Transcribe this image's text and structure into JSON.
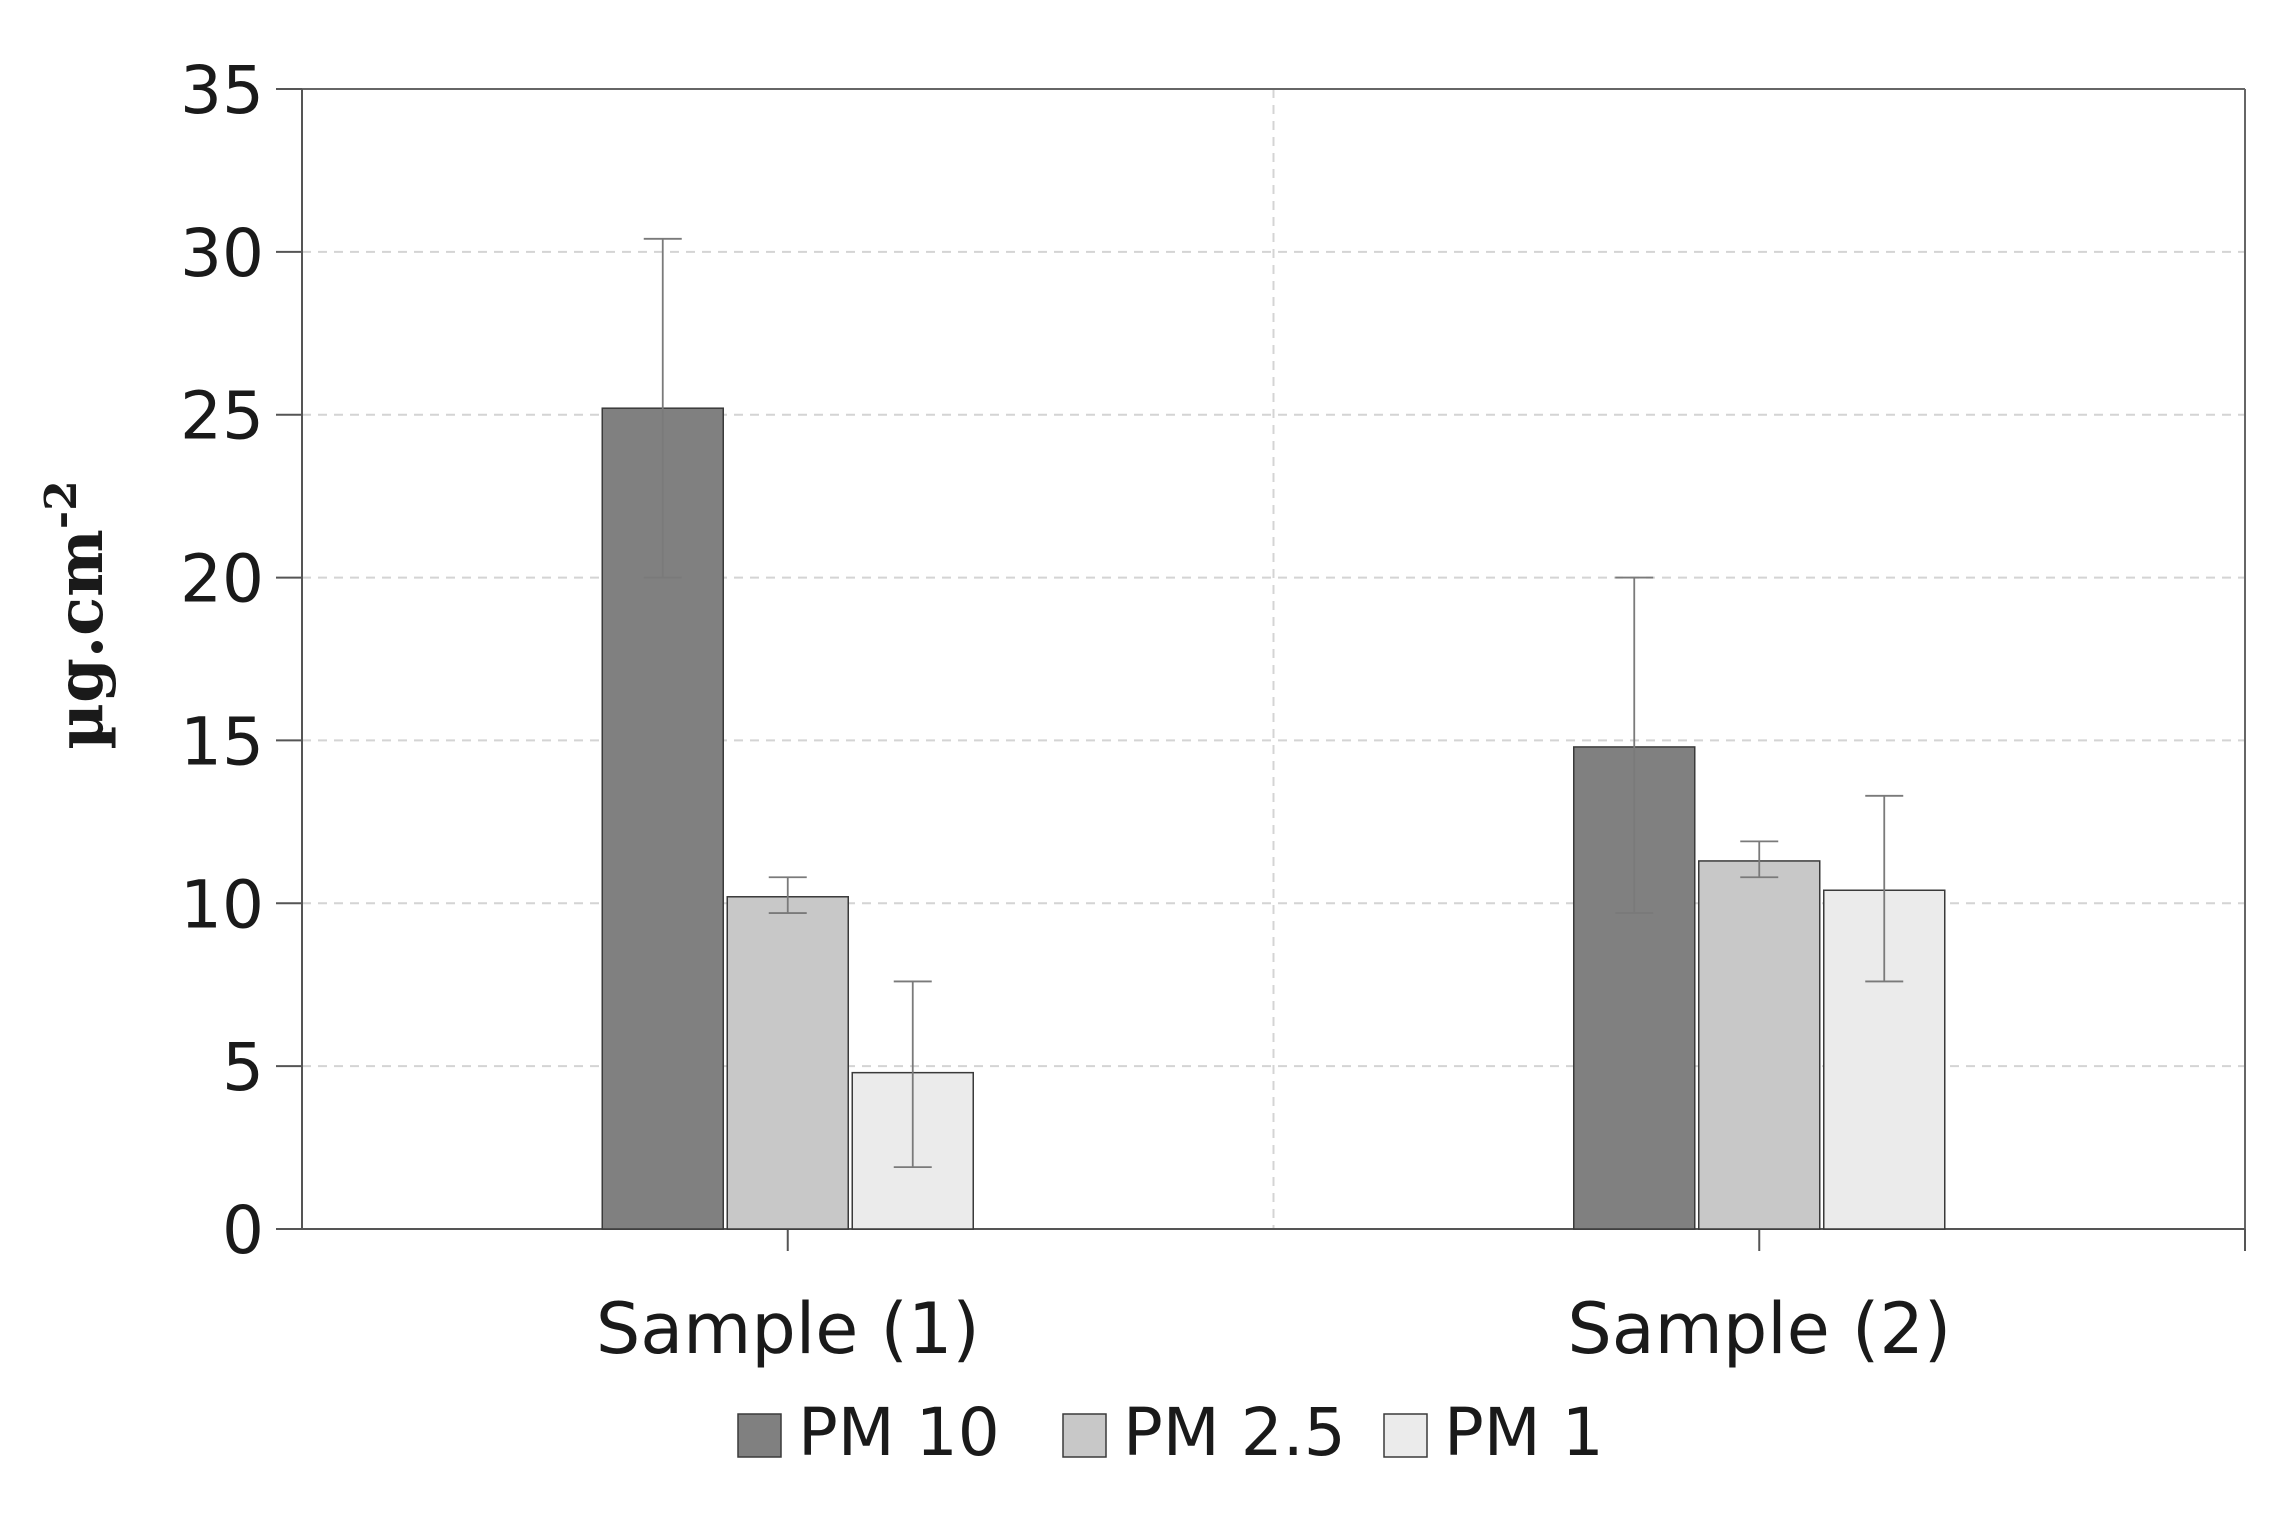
{
  "chart_data": {
    "type": "bar",
    "title": "",
    "xlabel": "",
    "ylabel": {
      "base": "µg.cm",
      "superscript": "-2"
    },
    "ylim": [
      0,
      35
    ],
    "yticks": [
      0,
      5,
      10,
      15,
      20,
      25,
      30,
      35
    ],
    "categories": [
      "Sample (1)",
      "Sample (2)"
    ],
    "series": [
      {
        "name": "PM 10",
        "color": "#808080",
        "values": [
          25.2,
          14.8
        ],
        "error_low": [
          20.0,
          9.7
        ],
        "error_high": [
          30.4,
          20.0
        ]
      },
      {
        "name": "PM 2.5",
        "color": "#c8c8c8",
        "values": [
          10.2,
          11.3
        ],
        "error_low": [
          9.7,
          10.8
        ],
        "error_high": [
          10.8,
          11.9
        ]
      },
      {
        "name": "PM 1",
        "color": "#ebebeb",
        "values": [
          4.8,
          10.4
        ],
        "error_low": [
          1.9,
          7.6
        ],
        "error_high": [
          7.6,
          13.3
        ]
      }
    ],
    "grid": true,
    "legend_position": "bottom"
  }
}
